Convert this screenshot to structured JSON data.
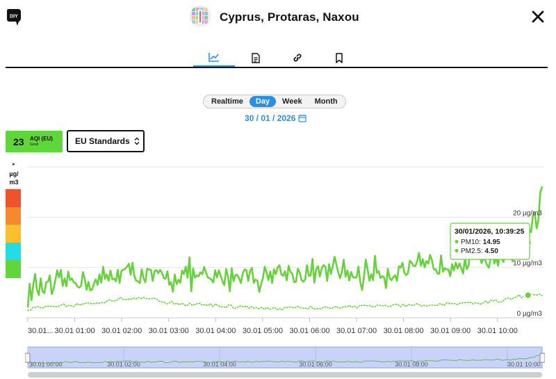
{
  "header": {
    "title": "Cyprus, Protaras, Naxou",
    "logo_text": "DIY",
    "logo_icon": "diy-hand-icon",
    "station_icon": "station-avatar-icon",
    "close_icon": "close-icon"
  },
  "tabs": [
    {
      "id": "chart",
      "icon": "chart-line-icon",
      "active": true
    },
    {
      "id": "details",
      "icon": "document-icon",
      "active": false
    },
    {
      "id": "link",
      "icon": "link-icon",
      "active": false
    },
    {
      "id": "bookmark",
      "icon": "bookmark-icon",
      "active": false
    }
  ],
  "time_range": {
    "options": [
      "Realtime",
      "Day",
      "Week",
      "Month"
    ],
    "selected": "Day"
  },
  "date": {
    "value": "30 / 01 / 2026",
    "icon": "calendar-icon"
  },
  "aqi": {
    "value": "23",
    "label": "AQI (EU)",
    "status": "Good",
    "color": "#5fd63a"
  },
  "standards": {
    "selected": "EU Standards",
    "icon": "chevron-updown-icon"
  },
  "legend": {
    "toggle_glyph": "▸",
    "unit_line1": "µg/",
    "unit_line2": "m3",
    "bands": [
      "#f0532b",
      "#f7892d",
      "#fbc02d",
      "#22dde4",
      "#5fd63a"
    ]
  },
  "chart_data": {
    "type": "line",
    "xlabel": "",
    "ylabel": "",
    "ylim": [
      0,
      30
    ],
    "y_ticks": [
      {
        "value": 0,
        "label": "0 µg/m3"
      },
      {
        "value": 10,
        "label": "10 µg/m3"
      },
      {
        "value": 20,
        "label": "20 µg/m3"
      }
    ],
    "x_ticks": [
      "30.01...",
      "30.01 01:00",
      "30.01 02:00",
      "30.01 03:00",
      "30.01 04:00",
      "30.01 05:00",
      "30.01 06:00",
      "30.01 07:00",
      "30.01 08:00",
      "30.01 09:00",
      "30.01 10:00"
    ],
    "x_range_hours": [
      0,
      10.95
    ],
    "series": [
      {
        "name": "PM10",
        "color": "#66d13c",
        "style": "solid",
        "anchors": [
          [
            0,
            4.8
          ],
          [
            0.2,
            6.2
          ],
          [
            0.5,
            5.4
          ],
          [
            0.8,
            7.2
          ],
          [
            1.1,
            7.7
          ],
          [
            1.4,
            6.5
          ],
          [
            1.8,
            8.5
          ],
          [
            2.2,
            9.2
          ],
          [
            2.6,
            8.1
          ],
          [
            3.0,
            7.9
          ],
          [
            3.4,
            8.8
          ],
          [
            3.8,
            7.5
          ],
          [
            4.2,
            8.2
          ],
          [
            4.6,
            8.7
          ],
          [
            5.0,
            8.3
          ],
          [
            5.4,
            9.3
          ],
          [
            5.8,
            8.6
          ],
          [
            6.2,
            8.8
          ],
          [
            6.6,
            9.2
          ],
          [
            7.0,
            8.4
          ],
          [
            7.4,
            9.0
          ],
          [
            7.8,
            9.1
          ],
          [
            8.2,
            9.6
          ],
          [
            8.6,
            10.1
          ],
          [
            9.0,
            11.2
          ],
          [
            9.4,
            11.8
          ],
          [
            9.8,
            12.2
          ],
          [
            10.2,
            12.5
          ],
          [
            10.5,
            14.0
          ],
          [
            10.7,
            17.0
          ],
          [
            10.85,
            20.5
          ],
          [
            10.95,
            25.4
          ]
        ]
      },
      {
        "name": "PM2.5",
        "color": "#66d13c",
        "style": "dotted",
        "anchors": [
          [
            0,
            1.8
          ],
          [
            0.3,
            2.0
          ],
          [
            0.6,
            2.3
          ],
          [
            1.0,
            2.6
          ],
          [
            1.5,
            3.0
          ],
          [
            2.0,
            3.8
          ],
          [
            2.5,
            4.1
          ],
          [
            3.0,
            3.0
          ],
          [
            3.5,
            2.6
          ],
          [
            4.0,
            2.5
          ],
          [
            4.5,
            2.1
          ],
          [
            5.0,
            2.0
          ],
          [
            5.5,
            1.9
          ],
          [
            6.0,
            2.0
          ],
          [
            6.5,
            2.1
          ],
          [
            7.0,
            2.2
          ],
          [
            7.5,
            2.4
          ],
          [
            8.0,
            2.5
          ],
          [
            8.5,
            2.6
          ],
          [
            9.0,
            2.8
          ],
          [
            9.5,
            3.0
          ],
          [
            10.0,
            3.3
          ],
          [
            10.4,
            4.2
          ],
          [
            10.7,
            4.5
          ],
          [
            10.95,
            4.4
          ]
        ]
      }
    ],
    "tooltip": {
      "title": "30/01/2026, 10:39:25",
      "rows": [
        {
          "label": "PM10:",
          "value": "14.95"
        },
        {
          "label": "PM2.5:",
          "value": "4.50"
        }
      ],
      "x_hours": 10.65
    }
  },
  "navigator": {
    "labels": [
      "30.01 00:00",
      "30.01 02:00",
      "30.01 04:00",
      "30.01 06:00",
      "30.01 08:00",
      "30.01 10:00"
    ],
    "selection_fill": "#c9d3f7"
  }
}
